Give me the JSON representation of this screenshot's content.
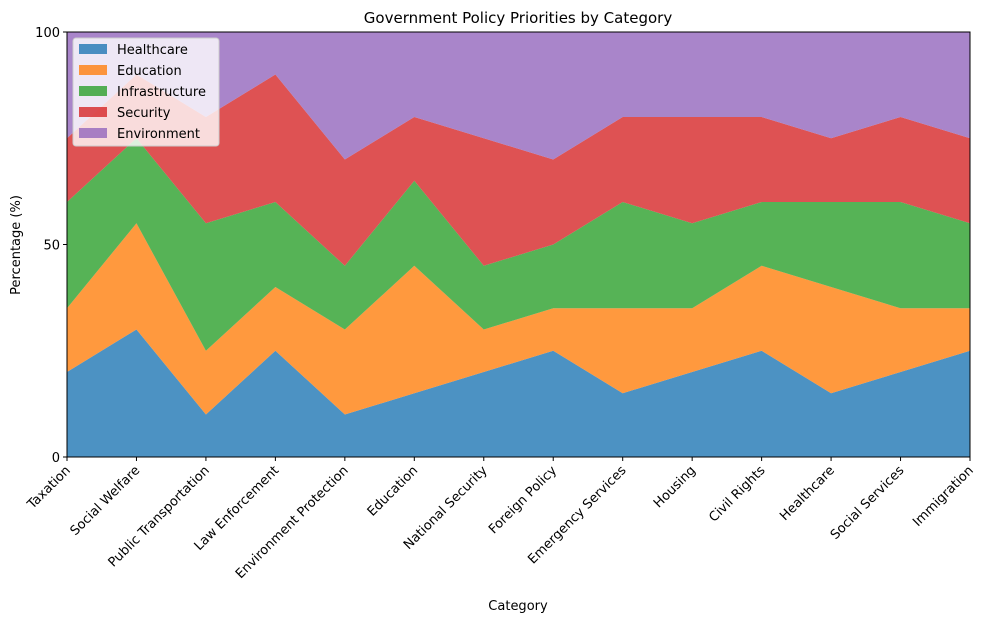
{
  "chart_data": {
    "type": "area",
    "stacked": true,
    "title": "Government Policy Priorities by Category",
    "xlabel": "Category",
    "ylabel": "Percentage (%)",
    "ylim": [
      0,
      100
    ],
    "yticks": [
      0,
      50,
      100
    ],
    "grid": false,
    "legend_position": "top-left",
    "categories": [
      "Taxation",
      "Social Welfare",
      "Public Transportation",
      "Law Enforcement",
      "Environment Protection",
      "Education",
      "National Security",
      "Foreign Policy",
      "Emergency Services",
      "Housing",
      "Civil Rights",
      "Healthcare",
      "Social Services",
      "Immigration"
    ],
    "series": [
      {
        "name": "Healthcare",
        "color": "#1f77b4",
        "values": [
          20,
          30,
          10,
          25,
          10,
          15,
          20,
          25,
          15,
          20,
          25,
          15,
          20,
          25
        ]
      },
      {
        "name": "Education",
        "color": "#ff7f0e",
        "values": [
          15,
          25,
          15,
          15,
          20,
          30,
          10,
          10,
          20,
          15,
          20,
          25,
          15,
          10
        ]
      },
      {
        "name": "Infrastructure",
        "color": "#2ca02c",
        "values": [
          25,
          20,
          30,
          20,
          15,
          20,
          15,
          15,
          25,
          20,
          15,
          20,
          25,
          20
        ]
      },
      {
        "name": "Security",
        "color": "#d62728",
        "values": [
          15,
          15,
          25,
          30,
          25,
          15,
          30,
          20,
          20,
          25,
          20,
          15,
          20,
          20
        ]
      },
      {
        "name": "Environment",
        "color": "#9467bd",
        "values": [
          25,
          10,
          20,
          10,
          30,
          20,
          25,
          30,
          20,
          20,
          20,
          25,
          20,
          25
        ]
      }
    ]
  }
}
